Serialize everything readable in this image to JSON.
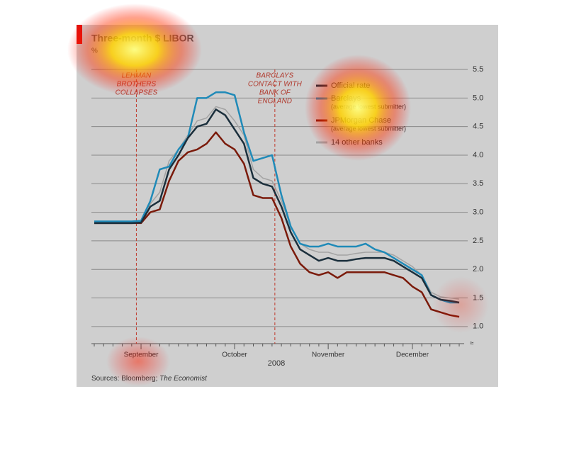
{
  "chart_data": {
    "type": "line",
    "title": "Three-month $ LIBOR",
    "subtitle": "%",
    "x_label": "2008",
    "source": "Sources: Bloomberg; ",
    "source_italic": "The Economist",
    "categories": [
      null,
      null,
      null,
      null,
      null,
      "September",
      null,
      null,
      null,
      null,
      null,
      null,
      null,
      null,
      null,
      "October",
      null,
      null,
      null,
      null,
      null,
      null,
      null,
      null,
      null,
      "November",
      null,
      null,
      null,
      null,
      null,
      null,
      null,
      null,
      "December",
      null,
      null,
      null,
      null,
      null
    ],
    "series": [
      {
        "name": "14 other banks",
        "color": "#a3a3a3",
        "values": [
          2.83,
          2.83,
          2.83,
          2.83,
          2.83,
          2.84,
          3.15,
          3.35,
          3.9,
          4.1,
          4.35,
          4.6,
          4.65,
          4.85,
          4.8,
          4.6,
          4.35,
          3.75,
          3.6,
          3.55,
          3.2,
          2.75,
          2.45,
          2.35,
          2.3,
          2.3,
          2.25,
          2.25,
          2.28,
          2.3,
          2.3,
          2.3,
          2.25,
          2.15,
          2.05,
          1.9,
          1.6,
          1.52,
          1.5,
          1.48
        ]
      },
      {
        "name": "JPMorgan Chase",
        "note": "(average lowest submitter)",
        "color": "#7a1a0a",
        "values": [
          2.81,
          2.81,
          2.81,
          2.81,
          2.81,
          2.81,
          3.0,
          3.05,
          3.55,
          3.9,
          4.05,
          4.1,
          4.2,
          4.4,
          4.2,
          4.1,
          3.85,
          3.3,
          3.25,
          3.25,
          2.9,
          2.4,
          2.1,
          1.95,
          1.9,
          1.95,
          1.85,
          1.95,
          1.95,
          1.95,
          1.95,
          1.95,
          1.9,
          1.85,
          1.7,
          1.6,
          1.3,
          1.25,
          1.2,
          1.17
        ]
      },
      {
        "name": "Barclays",
        "note": "(average lowest submitter)",
        "color": "#1f8ab8",
        "values": [
          2.84,
          2.84,
          2.84,
          2.84,
          2.84,
          2.85,
          3.2,
          3.75,
          3.8,
          4.1,
          4.3,
          5.0,
          5.0,
          5.1,
          5.1,
          5.05,
          4.4,
          3.9,
          3.95,
          4.0,
          3.3,
          2.75,
          2.45,
          2.4,
          2.4,
          2.45,
          2.4,
          2.4,
          2.4,
          2.45,
          2.35,
          2.3,
          2.2,
          2.1,
          2.0,
          1.9,
          1.55,
          1.47,
          1.42,
          1.42
        ]
      },
      {
        "name": "Official rate",
        "color": "#1b2f3c",
        "values": [
          2.81,
          2.81,
          2.81,
          2.81,
          2.81,
          2.82,
          3.1,
          3.2,
          3.75,
          4.0,
          4.3,
          4.5,
          4.55,
          4.8,
          4.7,
          4.45,
          4.2,
          3.6,
          3.5,
          3.45,
          3.1,
          2.65,
          2.35,
          2.25,
          2.15,
          2.2,
          2.15,
          2.15,
          2.18,
          2.2,
          2.2,
          2.2,
          2.15,
          2.05,
          1.95,
          1.85,
          1.55,
          1.47,
          1.45,
          1.42
        ]
      }
    ],
    "legend_order": [
      3,
      2,
      1,
      0
    ],
    "annotations": [
      {
        "lines": [
          "LEHMAN",
          "BROTHERS",
          "COLLAPSES"
        ]
      },
      {
        "lines": [
          "BARCLAYS",
          "CONTACT WITH",
          "BANK OF",
          "ENGLAND"
        ]
      }
    ],
    "ylim": [
      0.7,
      5.6
    ],
    "yticks": [
      {
        "value": 1,
        "label": "1.0"
      },
      1.5,
      {
        "value": 2,
        "label": "2.0"
      },
      2.5,
      {
        "value": 3,
        "label": "3.0"
      },
      3.5,
      {
        "value": 4,
        "label": "4.0"
      },
      4.5,
      {
        "value": 5,
        "label": "5.0"
      },
      5.5
    ],
    "grid": true
  }
}
